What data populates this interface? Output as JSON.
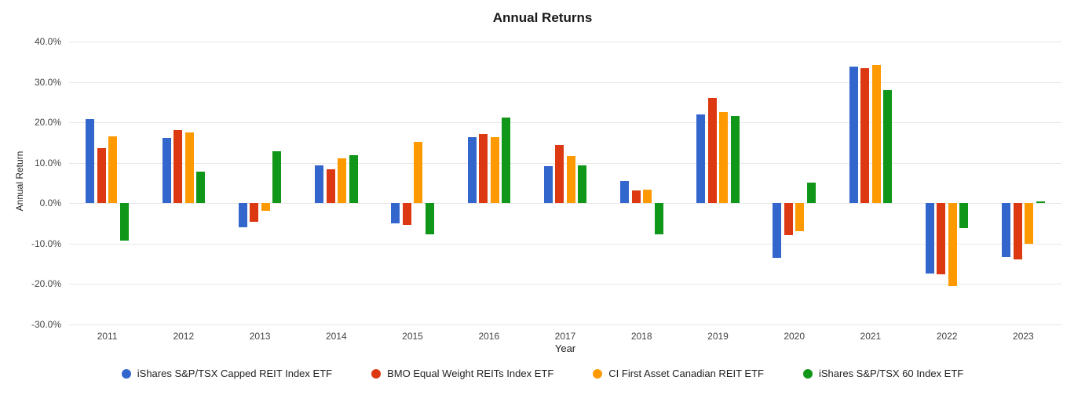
{
  "title": "Annual Returns",
  "axes": {
    "y": {
      "title": "Annual Return",
      "tick_labels": [
        "40.0%",
        "30.0%",
        "20.0%",
        "10.0%",
        "0.0%",
        "-10.0%",
        "-20.0%",
        "-30.0%"
      ],
      "tick_values": [
        40,
        30,
        20,
        10,
        0,
        -10,
        -20,
        -30
      ]
    },
    "x": {
      "title": "Year"
    }
  },
  "chart_data": {
    "type": "bar",
    "title": "Annual Returns",
    "xlabel": "Year",
    "ylabel": "Annual Return",
    "ylim": [
      -30,
      40
    ],
    "y_tick_step": 10,
    "y_tick_format": "percent_one_decimal",
    "grid": true,
    "legend_position": "bottom",
    "categories": [
      "2011",
      "2012",
      "2013",
      "2014",
      "2015",
      "2016",
      "2017",
      "2018",
      "2019",
      "2020",
      "2021",
      "2022",
      "2023"
    ],
    "series": [
      {
        "name": "iShares S&P/TSX Capped REIT Index ETF",
        "color": "#3366CC",
        "values": [
          20.9,
          16.1,
          -6.0,
          9.3,
          -5.0,
          16.4,
          9.2,
          5.5,
          22.0,
          -13.5,
          33.8,
          -17.5,
          -13.3
        ]
      },
      {
        "name": "BMO Equal Weight REITs Index ETF",
        "color": "#DC3912",
        "values": [
          13.7,
          18.2,
          -4.7,
          8.5,
          -5.3,
          17.2,
          14.4,
          3.2,
          26.0,
          -8.0,
          33.5,
          -17.7,
          -14.0
        ]
      },
      {
        "name": "CI First Asset Canadian REIT ETF",
        "color": "#FF9900",
        "values": [
          16.5,
          17.5,
          -1.8,
          11.2,
          15.2,
          16.3,
          11.7,
          3.4,
          22.5,
          -6.9,
          34.3,
          -20.5,
          -10.0
        ]
      },
      {
        "name": "iShares S&P/TSX 60 Index ETF",
        "color": "#109618",
        "values": [
          -9.3,
          7.9,
          12.9,
          11.9,
          -7.7,
          21.2,
          9.4,
          -7.8,
          21.7,
          5.2,
          28.0,
          -6.2,
          0.4
        ]
      }
    ]
  }
}
